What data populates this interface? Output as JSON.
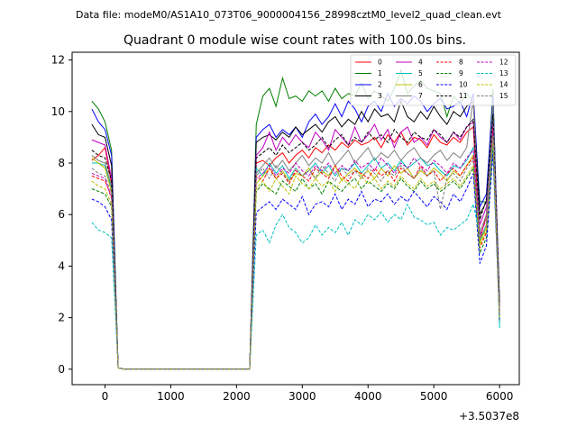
{
  "chart_data": {
    "type": "line",
    "suptitle": "Data file: modeM0/AS1A10_073T06_9000004156_28998cztM0_level2_quad_clean.evt",
    "title": "Quadrant 0 module wise count rates with 100.0s bins.",
    "xlabel": "",
    "ylabel": "",
    "offset_text": "+3.5037e8",
    "xlim": [
      -500,
      6300
    ],
    "ylim": [
      -0.6,
      12.3
    ],
    "xticks": [
      0,
      1000,
      2000,
      3000,
      4000,
      5000,
      6000
    ],
    "yticks": [
      0,
      2,
      4,
      6,
      8,
      10,
      12
    ],
    "legend": {
      "placement": "top-right",
      "columns": 4
    },
    "x": [
      -200,
      -100,
      0,
      100,
      200,
      300,
      400,
      500,
      600,
      700,
      800,
      900,
      1000,
      1100,
      1200,
      1300,
      1400,
      1500,
      1600,
      1700,
      1800,
      1900,
      2000,
      2100,
      2200,
      2300,
      2400,
      2500,
      2600,
      2700,
      2800,
      2900,
      3000,
      3100,
      3200,
      3300,
      3400,
      3500,
      3600,
      3700,
      3800,
      3900,
      4000,
      4100,
      4200,
      4300,
      4400,
      4500,
      4600,
      4700,
      4800,
      4900,
      5000,
      5100,
      5200,
      5300,
      5400,
      5500,
      5600,
      5700,
      5800,
      5900,
      6000
    ],
    "series": [
      {
        "name": "0",
        "color": "#ff0000",
        "dash": false,
        "values": [
          8.1,
          8.3,
          8.6,
          7.2,
          0.05,
          0,
          0,
          0,
          0,
          0,
          0,
          0,
          0,
          0,
          0,
          0,
          0,
          0,
          0,
          0,
          0,
          0,
          0,
          0,
          0,
          8.0,
          8.1,
          7.9,
          8.2,
          8.4,
          8.0,
          8.3,
          8.5,
          8.2,
          8.6,
          8.4,
          8.7,
          8.5,
          8.8,
          8.6,
          8.9,
          8.7,
          8.8,
          9.0,
          8.6,
          9.1,
          8.8,
          9.2,
          8.7,
          9.0,
          8.9,
          8.6,
          9.1,
          8.8,
          8.7,
          9.0,
          8.8,
          9.2,
          9.4,
          5.0,
          6.0,
          9.4,
          2.4
        ]
      },
      {
        "name": "1",
        "color": "#008000",
        "dash": false,
        "values": [
          10.4,
          10.1,
          9.6,
          8.5,
          0.05,
          0,
          0,
          0,
          0,
          0,
          0,
          0,
          0,
          0,
          0,
          0,
          0,
          0,
          0,
          0,
          0,
          0,
          0,
          0,
          0,
          9.5,
          10.6,
          10.9,
          10.2,
          11.3,
          10.5,
          10.6,
          10.4,
          10.8,
          10.6,
          10.8,
          10.4,
          10.9,
          10.5,
          10.7,
          10.6,
          11.1,
          10.5,
          10.8,
          10.6,
          10.4,
          10.9,
          11.6,
          10.7,
          11.0,
          11.2,
          10.9,
          10.8,
          10.7,
          9.8,
          10.6,
          10.3,
          10.7,
          10.4,
          6.5,
          6.5,
          10.9,
          1.8
        ]
      },
      {
        "name": "2",
        "color": "#0000ff",
        "dash": false,
        "values": [
          10.1,
          9.6,
          9.3,
          8.3,
          0.05,
          0,
          0,
          0,
          0,
          0,
          0,
          0,
          0,
          0,
          0,
          0,
          0,
          0,
          0,
          0,
          0,
          0,
          0,
          0,
          0,
          9.0,
          9.3,
          9.5,
          9.0,
          9.3,
          9.1,
          9.4,
          9.0,
          9.6,
          9.9,
          9.5,
          9.8,
          10.3,
          9.8,
          10.4,
          10.1,
          9.6,
          10.2,
          10.4,
          10.0,
          10.7,
          10.2,
          10.5,
          10.3,
          10.6,
          10.4,
          10.0,
          10.3,
          10.5,
          10.1,
          10.2,
          10.4,
          9.8,
          10.7,
          6.3,
          6.8,
          10.6,
          2.6
        ]
      },
      {
        "name": "3",
        "color": "#000000",
        "dash": false,
        "values": [
          9.5,
          9.1,
          9.0,
          7.9,
          0.05,
          0,
          0,
          0,
          0,
          0,
          0,
          0,
          0,
          0,
          0,
          0,
          0,
          0,
          0,
          0,
          0,
          0,
          0,
          0,
          0,
          8.8,
          9.0,
          9.1,
          8.9,
          9.2,
          9.0,
          9.4,
          9.1,
          9.3,
          9.5,
          9.2,
          9.6,
          9.8,
          9.4,
          9.7,
          9.5,
          10.0,
          9.6,
          10.1,
          9.8,
          9.9,
          9.6,
          10.4,
          9.8,
          9.6,
          10.0,
          9.7,
          10.2,
          9.8,
          9.5,
          10.0,
          9.8,
          10.2,
          10.4,
          6.0,
          6.5,
          10.2,
          2.5
        ]
      },
      {
        "name": "4",
        "color": "#bf00bf",
        "dash": false,
        "values": [
          8.9,
          8.8,
          8.7,
          7.4,
          0.05,
          0,
          0,
          0,
          0,
          0,
          0,
          0,
          0,
          0,
          0,
          0,
          0,
          0,
          0,
          0,
          0,
          0,
          0,
          0,
          0,
          8.3,
          8.6,
          9.2,
          8.5,
          9.0,
          8.7,
          9.1,
          8.8,
          8.6,
          9.2,
          8.9,
          8.5,
          9.3,
          9.0,
          8.7,
          9.4,
          8.8,
          9.1,
          9.5,
          8.9,
          9.3,
          8.6,
          9.2,
          9.4,
          8.8,
          9.0,
          8.7,
          9.3,
          9.0,
          8.8,
          9.2,
          8.9,
          9.4,
          9.6,
          5.6,
          6.3,
          9.8,
          2.2
        ]
      },
      {
        "name": "5",
        "color": "#00bfbf",
        "dash": false,
        "values": [
          8.0,
          8.0,
          7.9,
          7.0,
          0.05,
          0,
          0,
          0,
          0,
          0,
          0,
          0,
          0,
          0,
          0,
          0,
          0,
          0,
          0,
          0,
          0,
          0,
          0,
          0,
          0,
          7.8,
          7.5,
          8.0,
          7.6,
          7.9,
          7.4,
          7.8,
          7.5,
          7.7,
          8.0,
          7.6,
          7.9,
          7.5,
          7.8,
          7.7,
          8.0,
          7.6,
          7.9,
          8.2,
          7.8,
          8.0,
          7.7,
          8.1,
          7.8,
          8.0,
          8.2,
          7.9,
          8.0,
          7.7,
          7.5,
          7.9,
          7.8,
          8.1,
          8.6,
          5.0,
          5.6,
          10.2,
          1.6
        ]
      },
      {
        "name": "6",
        "color": "#bfbf00",
        "dash": false,
        "values": [
          8.2,
          8.0,
          7.8,
          6.9,
          0.05,
          0,
          0,
          0,
          0,
          0,
          0,
          0,
          0,
          0,
          0,
          0,
          0,
          0,
          0,
          0,
          0,
          0,
          0,
          0,
          0,
          7.2,
          7.5,
          7.8,
          7.4,
          7.7,
          7.3,
          7.6,
          7.5,
          7.8,
          7.4,
          7.7,
          7.5,
          7.9,
          7.3,
          7.6,
          7.8,
          7.5,
          7.7,
          7.4,
          7.8,
          7.5,
          7.9,
          7.6,
          7.8,
          7.4,
          7.7,
          7.5,
          7.8,
          7.6,
          7.3,
          7.7,
          7.5,
          7.9,
          8.3,
          4.9,
          5.5,
          9.0,
          2.1
        ]
      },
      {
        "name": "7",
        "color": "#808080",
        "dash": false,
        "values": [
          8.3,
          8.1,
          8.0,
          7.1,
          0.05,
          0,
          0,
          0,
          0,
          0,
          0,
          0,
          0,
          0,
          0,
          0,
          0,
          0,
          0,
          0,
          0,
          0,
          0,
          0,
          0,
          7.6,
          7.9,
          8.2,
          7.8,
          8.1,
          7.7,
          8.0,
          8.3,
          7.9,
          8.2,
          8.0,
          8.4,
          7.9,
          8.2,
          8.5,
          8.0,
          8.3,
          8.6,
          8.1,
          8.4,
          8.2,
          8.5,
          8.1,
          8.4,
          8.6,
          8.2,
          8.0,
          8.3,
          8.5,
          8.1,
          8.4,
          8.2,
          8.6,
          10.5,
          5.3,
          6.0,
          10.4,
          2.3
        ]
      },
      {
        "name": "8",
        "color": "#ff0000",
        "dash": true,
        "values": [
          7.5,
          7.4,
          7.3,
          6.7,
          0.05,
          0,
          0,
          0,
          0,
          0,
          0,
          0,
          0,
          0,
          0,
          0,
          0,
          0,
          0,
          0,
          0,
          0,
          0,
          0,
          0,
          7.5,
          7.3,
          7.8,
          7.4,
          7.6,
          7.2,
          7.7,
          7.5,
          7.3,
          7.8,
          7.6,
          7.4,
          7.9,
          7.5,
          7.3,
          7.7,
          7.6,
          7.4,
          7.8,
          7.5,
          7.7,
          7.3,
          7.8,
          7.6,
          7.4,
          7.9,
          7.5,
          7.7,
          7.3,
          7.6,
          7.8,
          7.5,
          7.9,
          8.2,
          4.7,
          5.3,
          9.2,
          2.1
        ]
      },
      {
        "name": "9",
        "color": "#008000",
        "dash": true,
        "values": [
          7.0,
          6.9,
          6.8,
          6.3,
          0.05,
          0,
          0,
          0,
          0,
          0,
          0,
          0,
          0,
          0,
          0,
          0,
          0,
          0,
          0,
          0,
          0,
          0,
          0,
          0,
          0,
          6.9,
          7.2,
          7.0,
          6.8,
          7.3,
          7.1,
          6.9,
          7.4,
          7.0,
          7.2,
          6.8,
          7.3,
          7.1,
          6.9,
          7.2,
          7.4,
          7.0,
          7.3,
          7.1,
          6.9,
          7.2,
          7.0,
          7.4,
          7.1,
          6.9,
          7.3,
          7.0,
          7.2,
          6.9,
          7.1,
          7.3,
          7.0,
          7.4,
          7.8,
          4.5,
          5.1,
          8.6,
          1.9
        ]
      },
      {
        "name": "10",
        "color": "#0000ff",
        "dash": true,
        "values": [
          6.6,
          6.5,
          6.3,
          5.8,
          0.05,
          0,
          0,
          0,
          0,
          0,
          0,
          0,
          0,
          0,
          0,
          0,
          0,
          0,
          0,
          0,
          0,
          0,
          0,
          0,
          0,
          6.1,
          6.3,
          6.5,
          6.2,
          6.6,
          6.4,
          6.2,
          6.7,
          6.0,
          6.4,
          6.5,
          6.3,
          6.8,
          6.2,
          6.6,
          6.4,
          6.9,
          6.3,
          6.6,
          6.5,
          6.8,
          6.4,
          6.7,
          6.5,
          6.9,
          6.6,
          6.3,
          6.7,
          6.5,
          6.2,
          6.8,
          6.5,
          7.0,
          7.6,
          4.1,
          4.8,
          8.4,
          1.9
        ]
      },
      {
        "name": "11",
        "color": "#000000",
        "dash": true,
        "values": [
          8.5,
          8.3,
          8.2,
          7.3,
          0.05,
          0,
          0,
          0,
          0,
          0,
          0,
          0,
          0,
          0,
          0,
          0,
          0,
          0,
          0,
          0,
          0,
          0,
          0,
          0,
          0,
          8.2,
          8.4,
          8.6,
          8.3,
          8.7,
          8.4,
          8.6,
          8.8,
          8.5,
          8.7,
          9.0,
          8.6,
          8.9,
          9.1,
          8.7,
          9.0,
          8.8,
          9.2,
          8.9,
          9.1,
          8.8,
          9.3,
          9.0,
          8.8,
          9.2,
          9.0,
          8.9,
          9.3,
          9.1,
          8.8,
          9.2,
          9.0,
          9.4,
          9.7,
          5.8,
          6.6,
          9.9,
          2.6
        ]
      },
      {
        "name": "12",
        "color": "#bf00bf",
        "dash": true,
        "values": [
          7.6,
          7.5,
          7.4,
          6.6,
          0.05,
          0,
          0,
          0,
          0,
          0,
          0,
          0,
          0,
          0,
          0,
          0,
          0,
          0,
          0,
          0,
          0,
          0,
          0,
          0,
          0,
          7.4,
          7.6,
          7.9,
          7.5,
          7.8,
          7.6,
          8.0,
          7.7,
          7.5,
          7.9,
          7.7,
          8.0,
          7.6,
          7.9,
          7.7,
          8.1,
          7.8,
          8.0,
          7.7,
          8.2,
          7.9,
          7.6,
          8.0,
          7.8,
          8.2,
          7.9,
          7.7,
          8.1,
          7.9,
          7.6,
          8.0,
          7.8,
          8.2,
          8.5,
          5.2,
          5.8,
          9.3,
          2.2
        ]
      },
      {
        "name": "13",
        "color": "#00bfbf",
        "dash": true,
        "values": [
          5.7,
          5.4,
          5.3,
          5.1,
          0.05,
          0,
          0,
          0,
          0,
          0,
          0,
          0,
          0,
          0,
          0,
          0,
          0,
          0,
          0,
          0,
          0,
          0,
          0,
          0,
          0,
          5.2,
          5.4,
          4.9,
          5.6,
          6.0,
          5.5,
          5.3,
          4.9,
          5.1,
          5.6,
          5.2,
          5.5,
          5.3,
          5.7,
          5.2,
          5.8,
          5.6,
          6.0,
          5.8,
          6.1,
          5.7,
          6.0,
          5.8,
          6.4,
          5.9,
          5.8,
          5.6,
          5.7,
          5.2,
          5.5,
          5.4,
          5.6,
          5.8,
          6.4,
          5.2,
          5.4,
          8.8,
          2.0
        ]
      },
      {
        "name": "14",
        "color": "#bfbf00",
        "dash": true,
        "values": [
          7.3,
          7.1,
          7.0,
          6.4,
          0.05,
          0,
          0,
          0,
          0,
          0,
          0,
          0,
          0,
          0,
          0,
          0,
          0,
          0,
          0,
          0,
          0,
          0,
          0,
          0,
          0,
          7.0,
          7.3,
          6.9,
          7.4,
          7.1,
          6.8,
          7.5,
          7.2,
          7.0,
          7.4,
          7.1,
          7.3,
          6.9,
          7.4,
          7.2,
          7.0,
          7.5,
          7.2,
          7.4,
          7.0,
          7.3,
          7.1,
          7.5,
          7.2,
          7.0,
          7.4,
          7.1,
          7.3,
          7.0,
          7.2,
          7.4,
          7.1,
          7.5,
          7.9,
          4.8,
          5.4,
          9.0,
          2.0
        ]
      },
      {
        "name": "15",
        "color": "#808080",
        "dash": true,
        "values": [
          7.8,
          7.6,
          7.5,
          6.8,
          0.05,
          0,
          0,
          0,
          0,
          0,
          0,
          0,
          0,
          0,
          0,
          0,
          0,
          0,
          0,
          0,
          0,
          0,
          0,
          0,
          0,
          7.5,
          7.8,
          7.4,
          7.9,
          7.6,
          7.3,
          7.8,
          7.5,
          7.7,
          7.4,
          7.9,
          7.6,
          7.3,
          7.8,
          7.5,
          7.7,
          7.4,
          7.8,
          7.6,
          7.3,
          7.7,
          7.5,
          7.9,
          7.6,
          7.4,
          7.8,
          7.5,
          7.7,
          6.2,
          7.4,
          7.6,
          7.3,
          7.8,
          8.1,
          5.0,
          5.6,
          9.1,
          2.1
        ]
      }
    ]
  }
}
